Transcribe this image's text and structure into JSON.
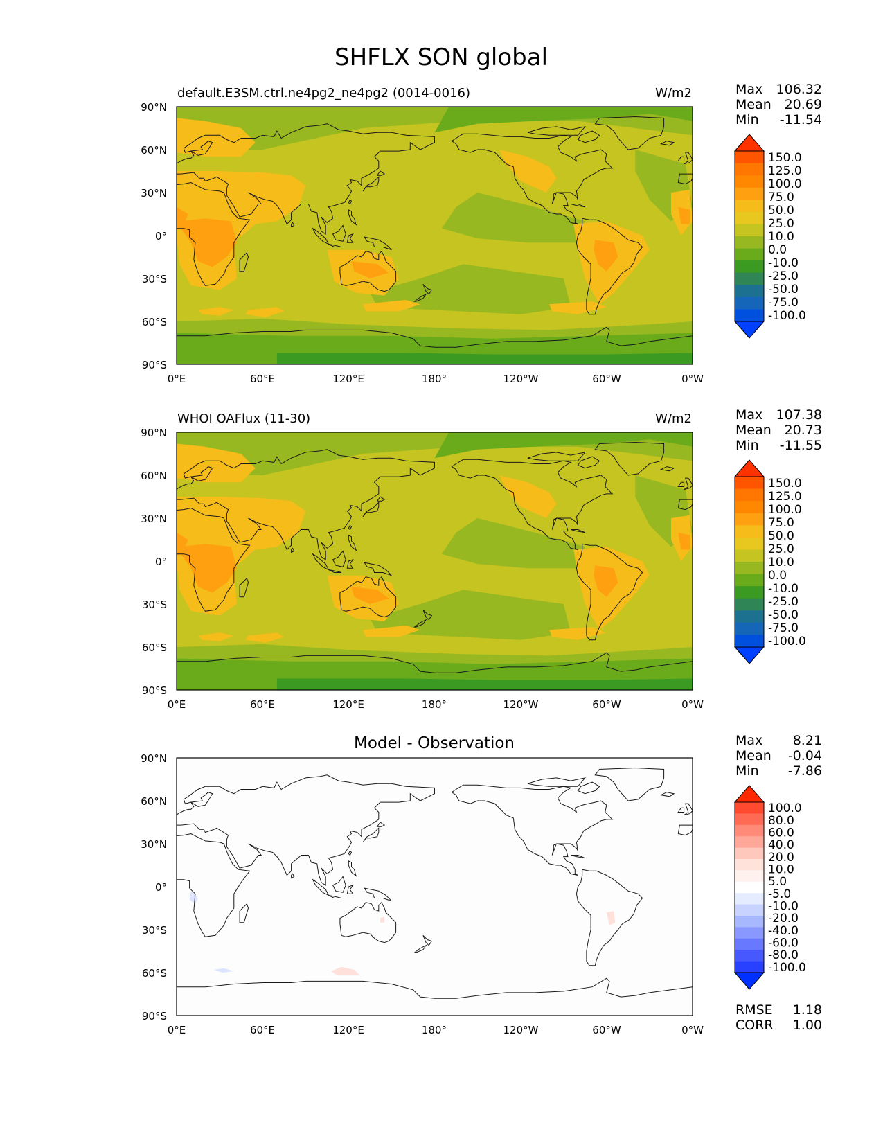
{
  "figure_title": "SHFLX SON global",
  "tick_labels": {
    "lat": [
      "90°N",
      "60°N",
      "30°N",
      "0°",
      "30°S",
      "60°S",
      "90°S"
    ],
    "lon": [
      "0°E",
      "60°E",
      "120°E",
      "180°",
      "120°W",
      "60°W",
      "0°W"
    ]
  },
  "stat_labels": {
    "max": "Max",
    "mean": "Mean",
    "min": "Min",
    "rmse": "RMSE",
    "corr": "CORR"
  },
  "panels": [
    {
      "title_left": "default.E3SM.ctrl.ne4pg2_ne4pg2 (0014-0016)",
      "title_center": "",
      "units": "W/m2",
      "stats": {
        "max": "106.32",
        "mean": "20.69",
        "min": "-11.54"
      },
      "colorbar": {
        "labels": [
          "150.0",
          "125.0",
          "100.0",
          "75.0",
          "50.0",
          "25.0",
          "10.0",
          "0.0",
          "-10.0",
          "-25.0",
          "-50.0",
          "-75.0",
          "-100.0"
        ],
        "colors": [
          "#ff3300",
          "#ff5500",
          "#ff7700",
          "#ff8800",
          "#ffa010",
          "#f5bc1a",
          "#e8c81e",
          "#c6c420",
          "#98b821",
          "#6aab1c",
          "#3a9a22",
          "#2f8556",
          "#1c7090",
          "#1566b8",
          "#0050e0",
          "#0040ff"
        ]
      }
    },
    {
      "title_left": "WHOI OAFlux (11-30)",
      "title_center": "",
      "units": "W/m2",
      "stats": {
        "max": "107.38",
        "mean": "20.73",
        "min": "-11.55"
      },
      "colorbar": {
        "labels": [
          "150.0",
          "125.0",
          "100.0",
          "75.0",
          "50.0",
          "25.0",
          "10.0",
          "0.0",
          "-10.0",
          "-25.0",
          "-50.0",
          "-75.0",
          "-100.0"
        ],
        "colors": [
          "#ff3300",
          "#ff5500",
          "#ff7700",
          "#ff8800",
          "#ffa010",
          "#f5bc1a",
          "#e8c81e",
          "#c6c420",
          "#98b821",
          "#6aab1c",
          "#3a9a22",
          "#2f8556",
          "#1c7090",
          "#1566b8",
          "#0050e0",
          "#0040ff"
        ]
      }
    },
    {
      "title_left": "",
      "title_center": "Model - Observation",
      "units": "",
      "stats": {
        "max": "8.21",
        "mean": "-0.04",
        "min": "-7.86"
      },
      "extra_stats": {
        "rmse": "1.18",
        "corr": "1.00"
      },
      "colorbar": {
        "labels": [
          "100.0",
          "80.0",
          "60.0",
          "40.0",
          "20.0",
          "10.0",
          "5.0",
          "-5.0",
          "-10.0",
          "-20.0",
          "-40.0",
          "-60.0",
          "-80.0",
          "-100.0"
        ],
        "colors": [
          "#ff2a00",
          "#ff4a30",
          "#ff6a55",
          "#ff8a78",
          "#ffa89a",
          "#ffc8bc",
          "#ffe2da",
          "#fff2ee",
          "#ffffff",
          "#e6ecff",
          "#c8d4ff",
          "#a8b8ff",
          "#8898ff",
          "#6878ff",
          "#4858ff",
          "#2840ff",
          "#0030ff"
        ]
      }
    }
  ],
  "colors": {
    "model_base": "#c6c420",
    "land_warm": "#f5bc1a",
    "hot": "#ffa010",
    "green": "#98b821",
    "dark_green": "#6aab1c",
    "polar": "#3a9a22",
    "diff_bg": "#fdfdfd",
    "diff_pos": "#ffe0da",
    "diff_neg": "#dce4ff"
  }
}
